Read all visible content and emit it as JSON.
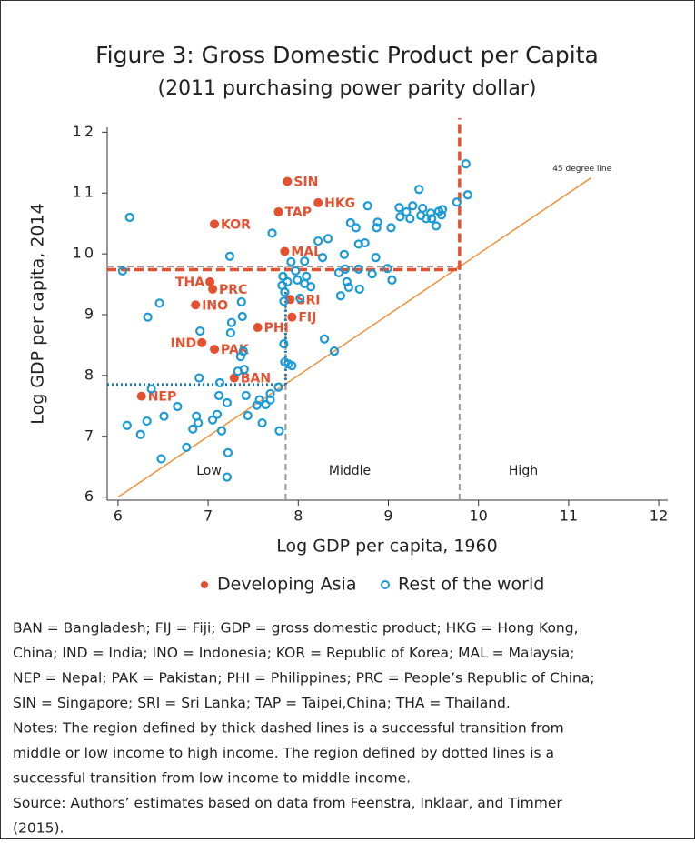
{
  "chart_data": {
    "type": "scatter",
    "title": "Figure 3: Gross Domestic Product per Capita",
    "subtitle": "(2011 purchasing power parity dollar)",
    "x_label": "Log GDP per capita, 1960",
    "y_label": "Log GDP per capita, 2014",
    "xlim": [
      5.88,
      12.1
    ],
    "ylim": [
      5.95,
      12.08
    ],
    "xticks": [
      6,
      7,
      8,
      9,
      10,
      11,
      12
    ],
    "yticks": [
      6,
      7,
      8,
      9,
      10,
      11,
      12
    ],
    "diagonal_label": "45 degree line",
    "diagonal_range": [
      6,
      11.25
    ],
    "regions": [
      "Low",
      "Middle",
      "High"
    ],
    "low_threshold": 7.86,
    "high_threshold": 9.79,
    "low_y": 7.85,
    "high_y": 9.74,
    "gray_y": 9.79,
    "series": [
      {
        "name": "Developing Asia",
        "color": "#e5502f",
        "labels": [
          "SIN",
          "HKG",
          "TAP",
          "KOR",
          "MAL",
          "THA",
          "PRC",
          "SRI",
          "INO",
          "FIJ",
          "PHI",
          "IND",
          "PAK",
          "BAN",
          "NEP"
        ],
        "x": [
          7.88,
          8.22,
          7.78,
          7.07,
          7.85,
          7.02,
          7.05,
          7.91,
          6.86,
          7.93,
          7.55,
          6.93,
          7.07,
          7.29,
          6.26
        ],
        "values": [
          11.19,
          10.84,
          10.69,
          10.49,
          10.04,
          9.54,
          9.42,
          9.25,
          9.16,
          8.96,
          8.79,
          8.54,
          8.43,
          7.96,
          7.66
        ]
      },
      {
        "name": "Rest of the world",
        "color": "#1a9bd7",
        "x": [
          6.13,
          6.05,
          6.33,
          6.46,
          6.1,
          6.25,
          6.32,
          6.37,
          6.51,
          6.48,
          6.66,
          6.76,
          6.83,
          6.87,
          6.89,
          6.9,
          6.91,
          7.05,
          7.1,
          7.12,
          7.13,
          7.15,
          7.21,
          7.22,
          7.21,
          7.26,
          7.25,
          7.24,
          7.33,
          7.39,
          7.36,
          7.38,
          7.37,
          7.4,
          7.42,
          7.44,
          7.54,
          7.57,
          7.6,
          7.64,
          7.69,
          7.69,
          7.71,
          7.79,
          7.78,
          7.83,
          7.82,
          7.85,
          7.84,
          7.88,
          7.84,
          7.85,
          7.89,
          7.93,
          7.92,
          7.97,
          7.99,
          8.07,
          8.09,
          8.07,
          8.02,
          8.14,
          8.22,
          8.27,
          8.33,
          8.29,
          8.4,
          8.45,
          8.47,
          8.51,
          8.54,
          8.56,
          8.52,
          8.58,
          8.64,
          8.67,
          8.68,
          8.67,
          8.77,
          8.74,
          8.82,
          8.86,
          8.87,
          8.88,
          8.99,
          9.03,
          9.12,
          9.13,
          9.2,
          9.24,
          9.27,
          9.34,
          9.36,
          9.38,
          9.47,
          9.48,
          9.56,
          9.53,
          9.42,
          9.59,
          9.6,
          9.04,
          9.76,
          9.86,
          9.88
        ],
        "values": [
          10.6,
          9.72,
          8.96,
          9.19,
          7.18,
          7.03,
          7.25,
          7.78,
          7.33,
          6.63,
          7.49,
          6.82,
          7.12,
          7.33,
          7.22,
          7.96,
          8.73,
          7.27,
          7.36,
          7.67,
          7.88,
          7.09,
          6.33,
          6.73,
          7.55,
          8.87,
          8.7,
          9.96,
          8.07,
          8.4,
          8.31,
          8.97,
          9.21,
          8.1,
          7.67,
          7.34,
          7.51,
          7.6,
          7.22,
          7.52,
          7.6,
          7.7,
          10.34,
          7.09,
          7.81,
          9.63,
          9.48,
          9.37,
          9.22,
          9.54,
          8.52,
          8.22,
          8.19,
          8.16,
          9.87,
          9.72,
          9.57,
          9.51,
          9.63,
          9.88,
          9.27,
          9.46,
          10.21,
          9.94,
          10.25,
          8.6,
          8.4,
          9.69,
          9.31,
          9.99,
          9.54,
          9.45,
          9.75,
          10.51,
          10.43,
          9.75,
          9.42,
          10.16,
          10.79,
          10.18,
          9.67,
          9.94,
          10.43,
          10.52,
          9.76,
          10.43,
          10.76,
          10.61,
          10.69,
          10.58,
          10.79,
          11.06,
          10.63,
          10.75,
          10.67,
          10.58,
          10.7,
          10.46,
          10.58,
          10.64,
          10.73,
          9.57,
          10.85,
          11.48,
          10.97
        ]
      }
    ],
    "notes": [
      "BAN = Bangladesh; FIJ = Fiji; GDP = gross domestic product; HKG = Hong Kong,",
      "China; IND = India; INO = Indonesia; KOR = Republic of Korea; MAL = Malaysia;",
      "NEP = Nepal; PAK = Pakistan; PHI = Philippines; PRC = People’s Republic of China;",
      "SIN = Singapore; SRI = Sri Lanka; TAP = Taipei,China; THA = Thailand.",
      "Notes: The region defined by thick dashed lines is a successful transition from",
      "middle or low income to high income. The region defined by dotted lines is a",
      "successful transition from low income to middle income.",
      "Source: Authors’ estimates based on data from Feenstra, Inklaar, and Timmer",
      "(2015)."
    ]
  }
}
